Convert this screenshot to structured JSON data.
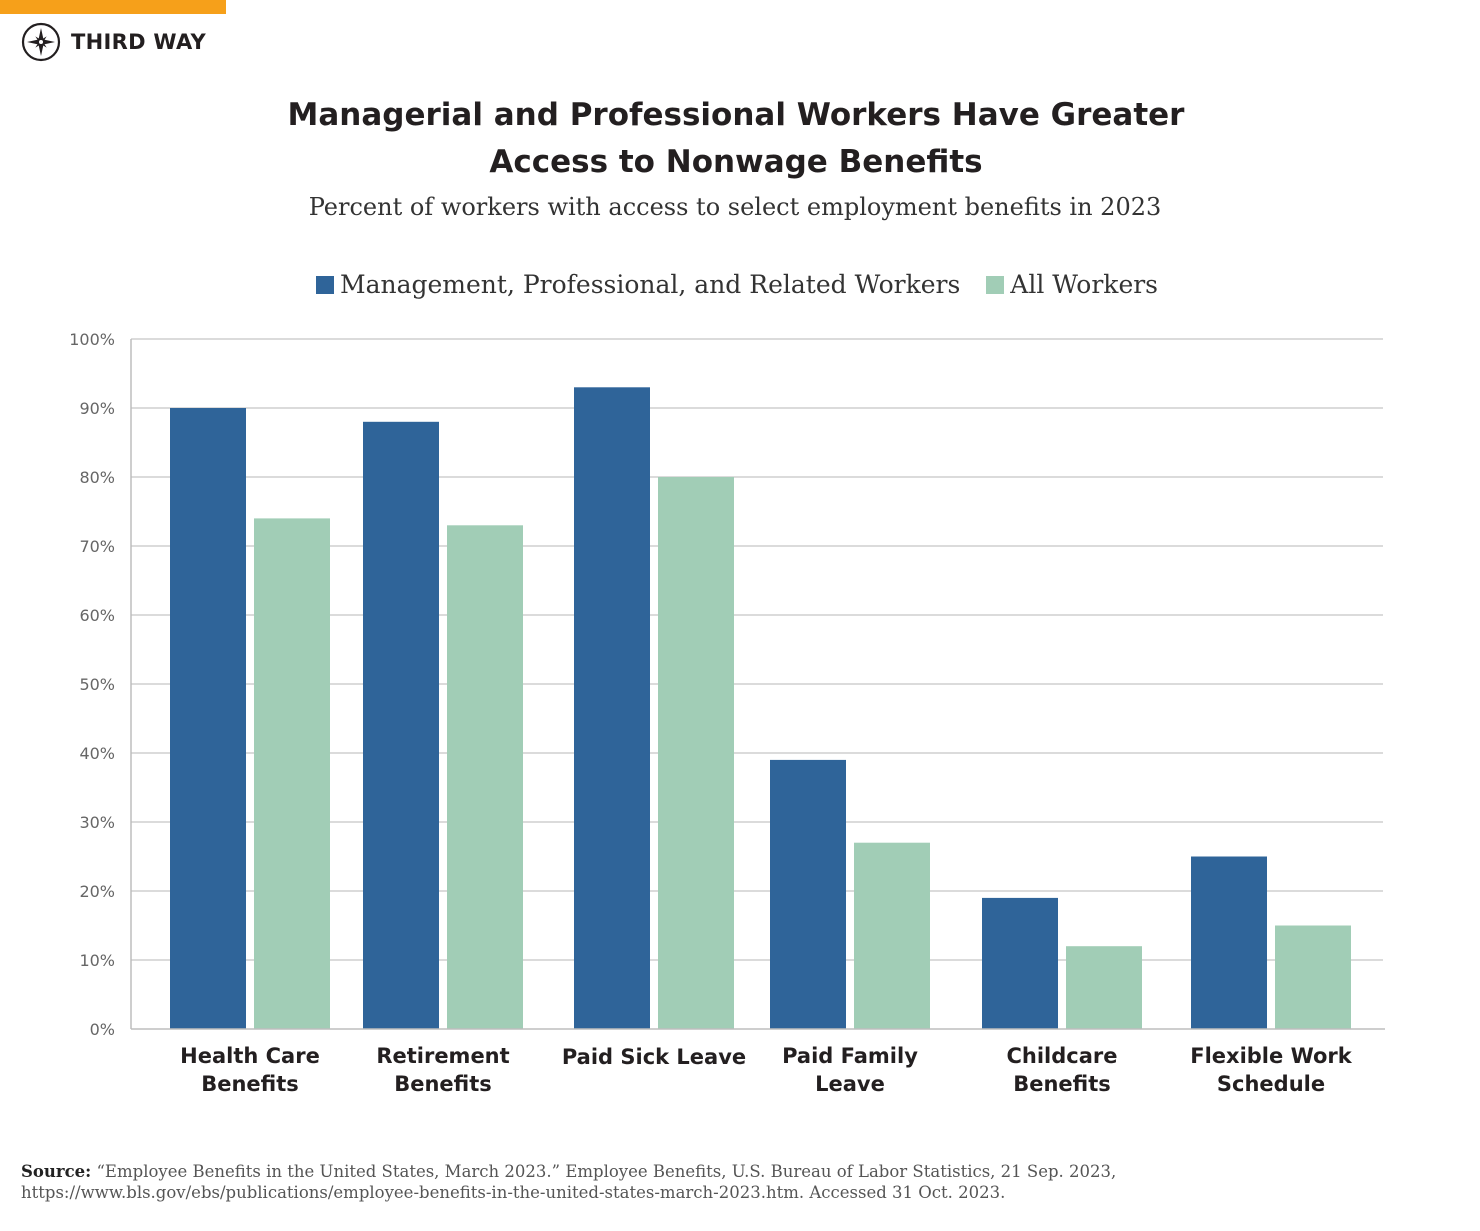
{
  "brand": {
    "name": "THIRD WAY",
    "accent_color": "#f6a01a"
  },
  "header": {
    "title_lines": [
      "Managerial and Professional Workers Have Greater",
      "Access to Nonwage Benefits"
    ],
    "subtitle": "Percent of workers with access to select employment benefits in 2023"
  },
  "legend": [
    {
      "label": "Management, Professional, and Related Workers",
      "color": "#2f6499"
    },
    {
      "label": "All Workers",
      "color": "#a1cdb6"
    }
  ],
  "chart_data": {
    "type": "bar",
    "title": "Managerial and Professional Workers Have Greater Access to Nonwage Benefits",
    "subtitle": "Percent of workers with access to select employment benefits in 2023",
    "categories": [
      [
        "Health Care",
        "Benefits"
      ],
      [
        "Retirement",
        "Benefits"
      ],
      [
        "Paid Sick Leave"
      ],
      [
        "Paid Family",
        "Leave"
      ],
      [
        "Childcare",
        "Benefits"
      ],
      [
        "Flexible Work",
        "Schedule"
      ]
    ],
    "series": [
      {
        "name": "Management, Professional, and Related Workers",
        "color": "#2f6499",
        "values": [
          90,
          88,
          93,
          39,
          19,
          25
        ]
      },
      {
        "name": "All Workers",
        "color": "#a1cdb6",
        "values": [
          74,
          73,
          80,
          27,
          12,
          15
        ]
      }
    ],
    "ylim": [
      0,
      100
    ],
    "yticks": [
      0,
      10,
      20,
      30,
      40,
      50,
      60,
      70,
      80,
      90,
      100
    ],
    "ytick_labels": [
      "0%",
      "10%",
      "20%",
      "30%",
      "40%",
      "50%",
      "60%",
      "70%",
      "80%",
      "90%",
      "100%"
    ],
    "grid": true,
    "xlabel": "",
    "ylabel": "",
    "legend_position": "top"
  },
  "source": {
    "label": "Source:",
    "text": "“Employee Benefits in the United States, March 2023.” Employee Benefits, U.S. Bureau of Labor Statistics, 21 Sep. 2023, https://www.bls.gov/ebs/publications/employee-benefits-in-the-united-states-march-2023.htm. Accessed 31 Oct. 2023."
  }
}
